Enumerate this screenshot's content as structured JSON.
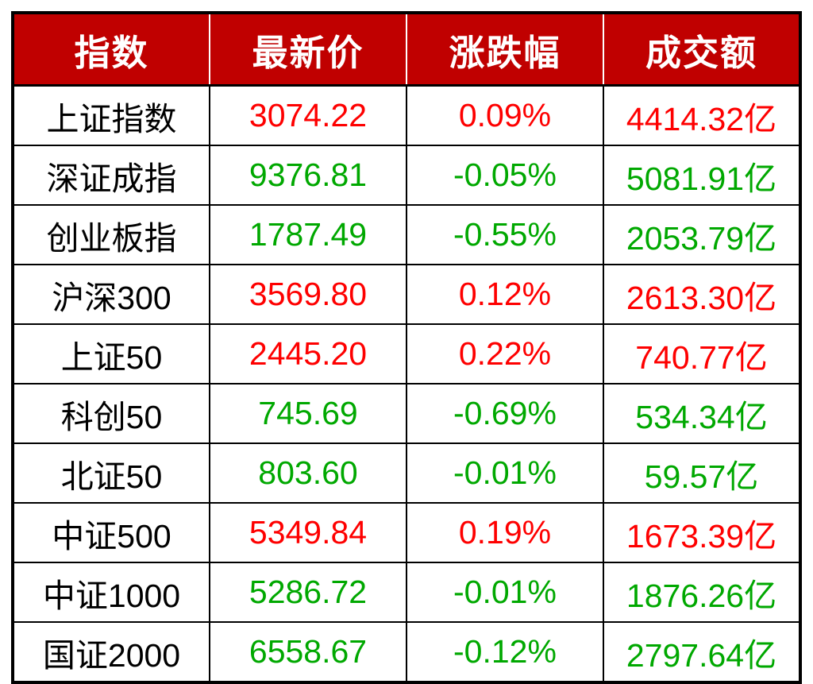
{
  "colors": {
    "header_bg": "#C00000",
    "header_text": "#FFFFFF",
    "up_color": "#FE0000",
    "down_color": "#00A800",
    "name_color": "#000000",
    "border_color": "#000000"
  },
  "table": {
    "headers": [
      "指数",
      "最新价",
      "涨跌幅",
      "成交额"
    ],
    "rows": [
      {
        "name": "上证指数",
        "price": "3074.22",
        "change": "0.09%",
        "turnover": "4414.32亿",
        "direction": "up"
      },
      {
        "name": "深证成指",
        "price": "9376.81",
        "change": "-0.05%",
        "turnover": "5081.91亿",
        "direction": "down"
      },
      {
        "name": "创业板指",
        "price": "1787.49",
        "change": "-0.55%",
        "turnover": "2053.79亿",
        "direction": "down"
      },
      {
        "name": "沪深300",
        "price": "3569.80",
        "change": "0.12%",
        "turnover": "2613.30亿",
        "direction": "up"
      },
      {
        "name": "上证50",
        "price": "2445.20",
        "change": "0.22%",
        "turnover": "740.77亿",
        "direction": "up"
      },
      {
        "name": "科创50",
        "price": "745.69",
        "change": "-0.69%",
        "turnover": "534.34亿",
        "direction": "down"
      },
      {
        "name": "北证50",
        "price": "803.60",
        "change": "-0.01%",
        "turnover": "59.57亿",
        "direction": "down"
      },
      {
        "name": "中证500",
        "price": "5349.84",
        "change": "0.19%",
        "turnover": "1673.39亿",
        "direction": "up"
      },
      {
        "name": "中证1000",
        "price": "5286.72",
        "change": "-0.01%",
        "turnover": "1876.26亿",
        "direction": "down"
      },
      {
        "name": "国证2000",
        "price": "6558.67",
        "change": "-0.12%",
        "turnover": "2797.64亿",
        "direction": "down"
      }
    ]
  },
  "chart_data": {
    "type": "table",
    "title": "",
    "columns": [
      "指数",
      "最新价",
      "涨跌幅",
      "成交额"
    ],
    "rows": [
      [
        "上证指数",
        "3074.22",
        "0.09%",
        "4414.32亿"
      ],
      [
        "深证成指",
        "9376.81",
        "-0.05%",
        "5081.91亿"
      ],
      [
        "创业板指",
        "1787.49",
        "-0.55%",
        "2053.79亿"
      ],
      [
        "沪深300",
        "3569.80",
        "0.12%",
        "2613.30亿"
      ],
      [
        "上证50",
        "2445.20",
        "0.22%",
        "740.77亿"
      ],
      [
        "科创50",
        "745.69",
        "-0.69%",
        "534.34亿"
      ],
      [
        "北证50",
        "803.60",
        "-0.01%",
        "59.57亿"
      ],
      [
        "中证500",
        "5349.84",
        "0.19%",
        "1673.39亿"
      ],
      [
        "中证1000",
        "5286.72",
        "-0.01%",
        "1876.26亿"
      ],
      [
        "国证2000",
        "6558.67",
        "-0.12%",
        "2797.64亿"
      ]
    ],
    "notes": "up rows rendered red (#FE0000), down rows rendered green (#00A800)"
  }
}
